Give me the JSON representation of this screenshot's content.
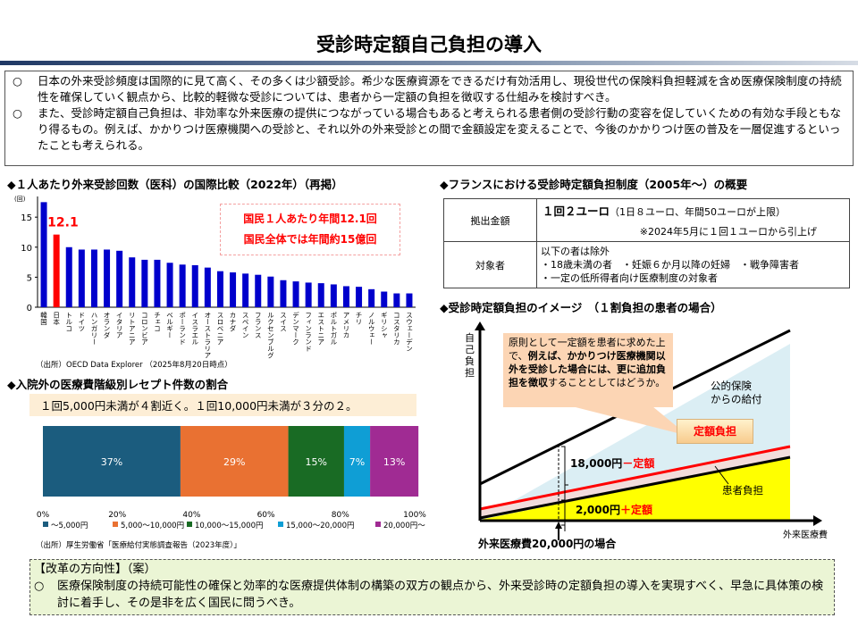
{
  "title": "受診時定額自己負担の導入",
  "intro": [
    {
      "bullet": "○",
      "text": "日本の外来受診頻度は国際的に見て高く、その多くは少額受診。希少な医療資源をできるだけ有効活用し、現役世代の保険料負担軽減を含め医療保険制度の持続性を確保していく観点から、比較的軽微な受診については、患者から一定額の負担を徴収する仕組みを検討すべき。"
    },
    {
      "bullet": "○",
      "text": "また、受診時定額自己負担は、非効率な外来医療の提供につながっている場合もあると考えられる患者側の受診行動の変容を促していくための有効な手段ともなり得るもの。例えば、かかりつけ医療機関への受診と、それ以外の外来受診との間で金額設定を変えることで、今後のかかりつけ医の普及を一層促進するといったことも考えられる。"
    }
  ],
  "chart1": {
    "heading": "◆１人あたり外来受診回数（医科）の国際比較（2022年）（再掲）",
    "annotation_lines": [
      "国民１人あたり年間12.1回",
      "国民全体では年間約15億回"
    ],
    "japan_label": "12.1",
    "source": "（出所）OECD Data Explorer （2025年8月20日時点）"
  },
  "chart2": {
    "heading": "◆入院外の医療費階級別レセプト件数の割合",
    "callout": "１回5,000円未満が４割近く。１回10,000円未満が３分の２。",
    "source": "（出所）厚生労働省「医療給付実態調査報告（2023年度）」"
  },
  "chart_data": [
    {
      "type": "bar",
      "ylabel": "(回)",
      "ylim": [
        0,
        18
      ],
      "yticks": [
        0,
        5,
        10,
        15
      ],
      "grid": false,
      "categories": [
        "韓国",
        "日本",
        "トルコ",
        "ドイツ",
        "ハンガリー",
        "オランダ",
        "イタリア",
        "リトアニア",
        "コロンビア",
        "チェコ",
        "ベルギー",
        "ポーランド",
        "イスラエル",
        "オーストラリア",
        "スロベニア",
        "カナダ",
        "スペイン",
        "フランス",
        "ルクセンブルグ",
        "スイス",
        "デンマーク",
        "フィンランド",
        "エストニア",
        "ポルトガル",
        "アメリカ",
        "チリ",
        "ノルウェー",
        "ギリシャ",
        "コスタリカ",
        "スウェーデン"
      ],
      "values": [
        17.5,
        12.1,
        10.0,
        9.6,
        9.6,
        9.6,
        9.4,
        8.3,
        7.9,
        7.9,
        7.4,
        7.1,
        7.0,
        6.6,
        6.0,
        5.8,
        5.6,
        5.4,
        5.1,
        4.5,
        4.3,
        4.1,
        4.0,
        3.8,
        3.5,
        3.4,
        3.0,
        2.6,
        2.3,
        2.3
      ],
      "colors": {
        "default": "#0000cc",
        "highlight": "#ff0000"
      }
    },
    {
      "type": "bar",
      "orientation": "horizontal-stacked",
      "xlim": [
        0,
        100
      ],
      "xticks": [
        "0%",
        "20%",
        "40%",
        "60%",
        "80%",
        "100%"
      ],
      "legend": "bottom",
      "series": [
        {
          "name": "～5,000円",
          "value": 37,
          "label": "37%",
          "color": "#1b5c7e"
        },
        {
          "name": "5,000～10,000円",
          "value": 29,
          "label": "29%",
          "color": "#e97132"
        },
        {
          "name": "10,000～15,000円",
          "value": 15,
          "label": "15%",
          "color": "#196b24"
        },
        {
          "name": "15,000～20,000円",
          "value": 7,
          "label": "7%",
          "color": "#0f9ed5"
        },
        {
          "name": "20,000円～",
          "value": 13,
          "label": "13%",
          "color": "#a02b93"
        }
      ]
    }
  ],
  "france": {
    "heading": "◆フランスにおける受診時定額負担制度（2005年～）の概要",
    "rows": [
      {
        "head": "拠出金額",
        "main": "１回２ユーロ",
        "sub": "（1日８ユーロ、年間50ユーロが上限）",
        "note": "※2024年5月に１回１ユーロから引上げ"
      },
      {
        "head": "対象者",
        "lines": [
          "以下の者は除外",
          "・18歳未満の者　・妊娠６か月以降の妊婦　・戦争障害者",
          "・一定の低所得者向け医療制度の対象者"
        ]
      }
    ]
  },
  "image": {
    "heading": "◆受診時定額負担のイメージ　（１割負担の患者の場合）",
    "ylabel": "自己負担",
    "xlabel": "外来医療費",
    "callout_plain1": "原則として一定額を患者に求めた上で、",
    "callout_bold": "例えば、かかりつけ医療機関以外を受診した場合には、更に追加負担を徴収",
    "callout_plain2": "することとしてはどうか。",
    "public": "公的保険\nからの給付",
    "fixed": "定額負担",
    "patient": "患者負担",
    "upper_amount": "18,000円",
    "upper_suffix": "－定額",
    "lower_amount": "2,000円",
    "lower_suffix": "＋定額",
    "case": "外来医療費20,000円の場合"
  },
  "reform": {
    "title": "【改革の方向性】（案）",
    "bullet": "○",
    "text": "医療保険制度の持続可能性の確保と効率的な医療提供体制の構築の双方の観点から、外来受診時の定額負担の導入を実現すべく、早急に具体策の検討に着手し、その是非を広く国民に問うべき。"
  }
}
